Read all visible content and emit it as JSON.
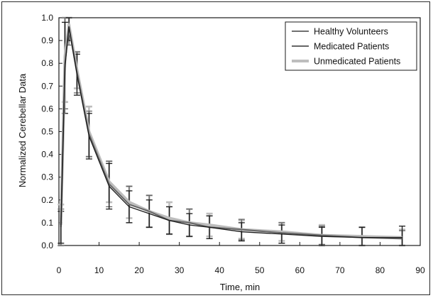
{
  "chart_data": {
    "type": "line",
    "title": "",
    "xlabel": "Time, min",
    "ylabel": "Normalized Cerebellar Data",
    "xlim": [
      0,
      90
    ],
    "ylim": [
      0,
      1.0
    ],
    "x_ticks": [
      0,
      10,
      20,
      30,
      40,
      50,
      60,
      70,
      80,
      90
    ],
    "y_ticks": [
      "0.0",
      "0.1",
      "0.2",
      "0.3",
      "0.4",
      "0.5",
      "0.6",
      "0.7",
      "0.8",
      "0.9",
      "1.0"
    ],
    "grid": false,
    "legend_position": "top-right",
    "series": [
      {
        "name": "Healthy Volunteers",
        "color": "#1a1a1a",
        "x": [
          0.5,
          1.5,
          2.5,
          4.5,
          7.5,
          12.5,
          17.5,
          22.5,
          27.5,
          32.5,
          37.5,
          45.5,
          55.5,
          65.5,
          75.5,
          85.5
        ],
        "y": [
          0.08,
          0.78,
          0.96,
          0.75,
          0.48,
          0.26,
          0.17,
          0.14,
          0.11,
          0.09,
          0.08,
          0.06,
          0.05,
          0.04,
          0.035,
          0.035
        ],
        "err": [
          0.07,
          0.2,
          0.06,
          0.09,
          0.1,
          0.1,
          0.07,
          0.06,
          0.06,
          0.05,
          0.05,
          0.04,
          0.04,
          0.04,
          0.045,
          0.05
        ]
      },
      {
        "name": "Medicated Patients",
        "color": "#666666",
        "x": [
          0.5,
          1.5,
          2.5,
          4.5,
          7.5,
          12.5,
          17.5,
          22.5,
          27.5,
          32.5,
          37.5,
          45.5,
          55.5,
          65.5,
          75.5,
          85.5
        ],
        "y": [
          0.08,
          0.8,
          0.96,
          0.76,
          0.49,
          0.27,
          0.18,
          0.15,
          0.11,
          0.1,
          0.08,
          0.07,
          0.055,
          0.045,
          0.035,
          0.03
        ],
        "err": [
          0.08,
          0.2,
          0.08,
          0.09,
          0.1,
          0.1,
          0.08,
          0.07,
          0.06,
          0.06,
          0.05,
          0.045,
          0.045,
          0.04,
          0.045,
          0.035
        ]
      },
      {
        "name": "Unmedicated Patients",
        "color": "#bdbdbd",
        "x": [
          0.5,
          1.5,
          2.5,
          4.5,
          7.5,
          12.5,
          17.5,
          22.5,
          27.5,
          32.5,
          37.5,
          45.5,
          55.5,
          65.5,
          75.5,
          85.5
        ],
        "y": [
          0.09,
          0.83,
          0.97,
          0.77,
          0.5,
          0.28,
          0.19,
          0.15,
          0.12,
          0.1,
          0.09,
          0.07,
          0.06,
          0.045,
          0.04,
          0.035
        ],
        "err": [
          0.09,
          0.2,
          0.07,
          0.08,
          0.11,
          0.09,
          0.07,
          0.07,
          0.07,
          0.06,
          0.05,
          0.04,
          0.04,
          0.045,
          0.04,
          0.035
        ]
      }
    ]
  }
}
